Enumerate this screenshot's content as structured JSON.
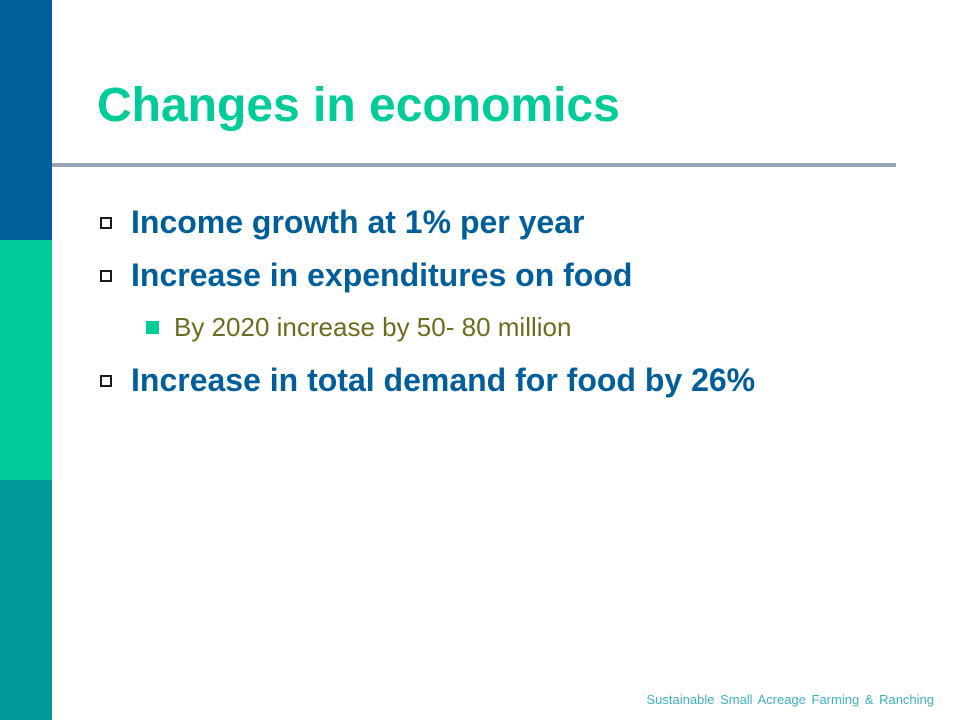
{
  "slide": {
    "title": "Changes in economics",
    "bullets": [
      {
        "level": 1,
        "text": "Income growth at 1% per year"
      },
      {
        "level": 1,
        "text": "Increase in expenditures on food"
      },
      {
        "level": 2,
        "text": "By 2020 increase by 50- 80 million"
      },
      {
        "level": 1,
        "text": "Increase in total demand for food by 26%"
      }
    ],
    "footer": "Sustainable Small Acreage Farming & Ranching"
  },
  "colors": {
    "title": "#00cc99",
    "bullet_text": "#005f9a",
    "sub_bullet_text": "#6e6b1f",
    "sidebar_top": "#005f9a",
    "sidebar_middle": "#00cc99",
    "sidebar_bottom": "#009999",
    "footer": "#3fb0c9"
  }
}
